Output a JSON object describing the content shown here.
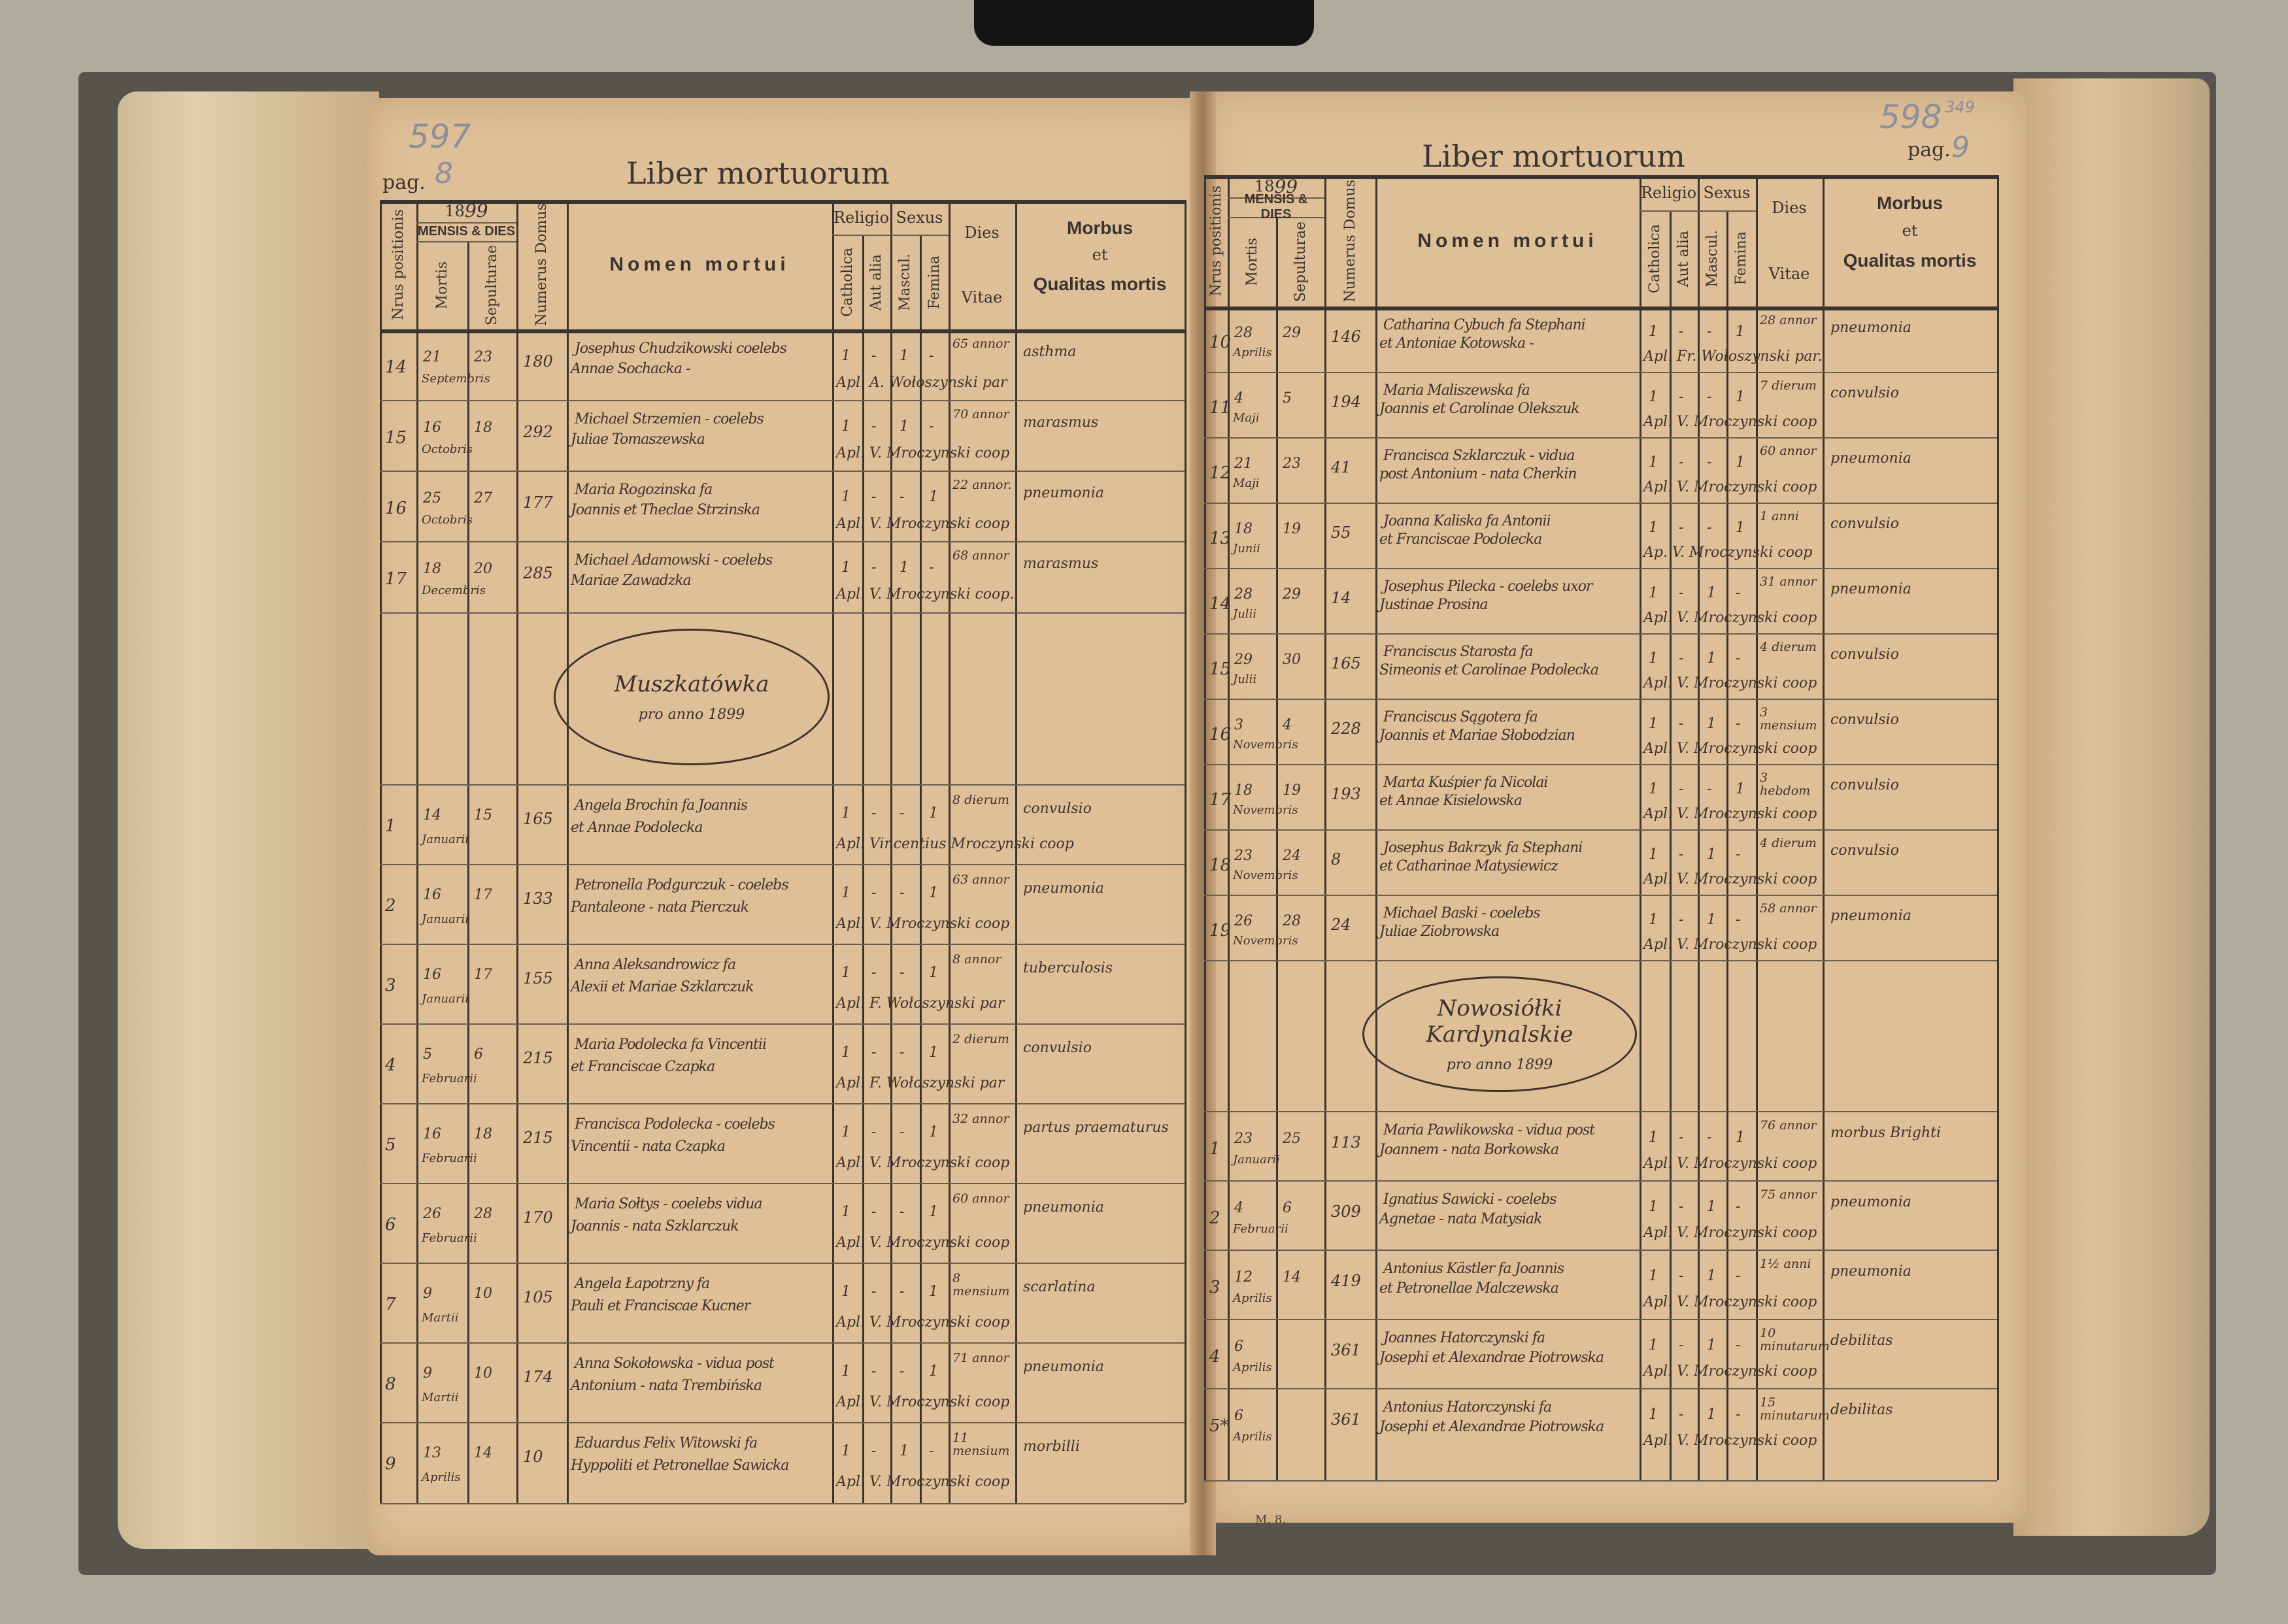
{
  "book": {
    "title": "Liber mortuorum",
    "pag_label": "pag.",
    "year_prefix": "18",
    "footer_mark": "M. 8."
  },
  "header": {
    "nrus": "Nrus positionis",
    "mensis_dies": "MENSIS & DIES",
    "mortis": "Mortis",
    "sepulturae": "Sepulturae",
    "numerus_domus": "Numerus Domus",
    "nomen": "Nomen mortui",
    "religio": "Religio",
    "catholica": "Catholica",
    "aut_alia": "Aut alia",
    "sexus_left": "Sexus",
    "sexus_right": "Sexus",
    "mascul": "Mascul.",
    "femina": "Femina",
    "dies": "Dies",
    "vitae": "Vitae",
    "morbus": "Morbus",
    "et": "et",
    "qualitas": "Qualitas mortis"
  },
  "left_page": {
    "pencil_number": "597",
    "page_number": "8",
    "year": "99",
    "stamp": {
      "name": "Muszkatówka",
      "sub": "pro anno 1899"
    },
    "rows_a": [
      {
        "nr": "14",
        "mortis": "21",
        "sepulturae": "23",
        "mensis": "Septembris",
        "domus": "180",
        "nomen": [
          "Josephus Chudzikowski coelebs",
          "Annae Sochacka -"
        ],
        "catholica": "1",
        "aut_alia": "-",
        "mascul": "1",
        "femina": "-",
        "dies_vitae": "65 annor",
        "morbus": "asthma",
        "sacerdos": "Apl. A. Wołoszynski par"
      },
      {
        "nr": "15",
        "mortis": "16",
        "sepulturae": "18",
        "mensis": "Octobris",
        "domus": "292",
        "nomen": [
          "Michael Strzemien - coelebs",
          "Juliae Tomaszewska"
        ],
        "catholica": "1",
        "aut_alia": "-",
        "mascul": "1",
        "femina": "-",
        "dies_vitae": "70 annor",
        "morbus": "marasmus",
        "sacerdos": "Apl. V. Mroczynski coop"
      },
      {
        "nr": "16",
        "mortis": "25",
        "sepulturae": "27",
        "mensis": "Octobris",
        "domus": "177",
        "nomen": [
          "Maria Rogozinska fa",
          "Joannis et Theclae Strzinska"
        ],
        "catholica": "1",
        "aut_alia": "-",
        "mascul": "-",
        "femina": "1",
        "dies_vitae": "22 annor.",
        "morbus": "pneumonia",
        "sacerdos": "Apl. V. Mroczynski coop"
      },
      {
        "nr": "17",
        "mortis": "18",
        "sepulturae": "20",
        "mensis": "Decembris",
        "domus": "285",
        "nomen": [
          "Michael Adamowski - coelebs",
          "Mariae Zawadzka"
        ],
        "catholica": "1",
        "aut_alia": "-",
        "mascul": "1",
        "femina": "-",
        "dies_vitae": "68 annor",
        "morbus": "marasmus",
        "sacerdos": "Apl. V. Mroczynski coop."
      }
    ],
    "rows_b": [
      {
        "nr": "1",
        "mortis": "14",
        "sepulturae": "15",
        "mensis": "Januarii",
        "domus": "165",
        "nomen": [
          "Angela Brochin fa Joannis",
          "et Annae Podolecka"
        ],
        "catholica": "1",
        "aut_alia": "-",
        "mascul": "-",
        "femina": "1",
        "dies_vitae": "8 dierum",
        "morbus": "convulsio",
        "sacerdos": "Apl. Vincentius Mroczynski coop"
      },
      {
        "nr": "2",
        "mortis": "16",
        "sepulturae": "17",
        "mensis": "Januarii",
        "domus": "133",
        "nomen": [
          "Petronella Podgurczuk - coelebs",
          "Pantaleone - nata Pierczuk"
        ],
        "catholica": "1",
        "aut_alia": "-",
        "mascul": "-",
        "femina": "1",
        "dies_vitae": "63 annor",
        "morbus": "pneumonia",
        "sacerdos": "Apl. V. Mroczynski coop"
      },
      {
        "nr": "3",
        "mortis": "16",
        "sepulturae": "17",
        "mensis": "Januarii",
        "domus": "155",
        "nomen": [
          "Anna Aleksandrowicz fa",
          "Alexii et Mariae Szklarczuk"
        ],
        "catholica": "1",
        "aut_alia": "-",
        "mascul": "-",
        "femina": "1",
        "dies_vitae": "8 annor",
        "morbus": "tuberculosis",
        "sacerdos": "Apl. F. Wołoszynski par"
      },
      {
        "nr": "4",
        "mortis": "5",
        "sepulturae": "6",
        "mensis": "Februarii",
        "domus": "215",
        "nomen": [
          "Maria Podolecka fa Vincentii",
          "et Franciscae Czapka"
        ],
        "catholica": "1",
        "aut_alia": "-",
        "mascul": "-",
        "femina": "1",
        "dies_vitae": "2 dierum",
        "morbus": "convulsio",
        "sacerdos": "Apl. F. Wołoszynski par"
      },
      {
        "nr": "5",
        "mortis": "16",
        "sepulturae": "18",
        "mensis": "Februarii",
        "domus": "215",
        "nomen": [
          "Francisca Podolecka - coelebs",
          "Vincentii - nata Czapka"
        ],
        "catholica": "1",
        "aut_alia": "-",
        "mascul": "-",
        "femina": "1",
        "dies_vitae": "32 annor",
        "morbus": "partus praematurus",
        "sacerdos": "Apl. V. Mroczynski coop"
      },
      {
        "nr": "6",
        "mortis": "26",
        "sepulturae": "28",
        "mensis": "Februarii",
        "domus": "170",
        "nomen": [
          "Maria Sołtys - coelebs vidua",
          "Joannis - nata Szklarczuk"
        ],
        "catholica": "1",
        "aut_alia": "-",
        "mascul": "-",
        "femina": "1",
        "dies_vitae": "60 annor",
        "morbus": "pneumonia",
        "sacerdos": "Apl. V. Mroczynski coop"
      },
      {
        "nr": "7",
        "mortis": "9",
        "sepulturae": "10",
        "mensis": "Martii",
        "domus": "105",
        "nomen": [
          "Angela Łapotrzny fa",
          "Pauli et Franciscae Kucner"
        ],
        "catholica": "1",
        "aut_alia": "-",
        "mascul": "-",
        "femina": "1",
        "dies_vitae": "8 mensium",
        "morbus": "scarlatina",
        "sacerdos": "Apl. V. Mroczynski coop"
      },
      {
        "nr": "8",
        "mortis": "9",
        "sepulturae": "10",
        "mensis": "Martii",
        "domus": "174",
        "nomen": [
          "Anna Sokołowska - vidua post",
          "Antonium - nata Trembińska"
        ],
        "catholica": "1",
        "aut_alia": "-",
        "mascul": "-",
        "femina": "1",
        "dies_vitae": "71 annor",
        "morbus": "pneumonia",
        "sacerdos": "Apl. V. Mroczynski coop"
      },
      {
        "nr": "9",
        "mortis": "13",
        "sepulturae": "14",
        "mensis": "Aprilis",
        "domus": "10",
        "nomen": [
          "Eduardus Felix Witowski fa",
          "Hyppoliti et Petronellae Sawicka"
        ],
        "catholica": "1",
        "aut_alia": "-",
        "mascul": "1",
        "femina": "-",
        "dies_vitae": "11 mensium",
        "morbus": "morbilli",
        "sacerdos": "Apl. V. Mroczynski coop"
      }
    ]
  },
  "right_page": {
    "pencil_number": "598",
    "pencil_small": "349",
    "page_number": "9",
    "year": "99",
    "stamp": {
      "name": "Nowosiółki Kardynalskie",
      "sub": "pro anno 1899"
    },
    "rows_a": [
      {
        "nr": "10",
        "mortis": "28",
        "sepulturae": "29",
        "mensis": "Aprilis",
        "domus": "146",
        "nomen": [
          "Catharina Cybuch fa Stephani",
          "et Antoniae Kotowska -"
        ],
        "catholica": "1",
        "aut_alia": "-",
        "mascul": "-",
        "femina": "1",
        "dies_vitae": "28 annor",
        "morbus": "pneumonia",
        "sacerdos": "Apl. Fr. Wołoszynski par."
      },
      {
        "nr": "11",
        "mortis": "4",
        "sepulturae": "5",
        "mensis": "Maji",
        "domus": "194",
        "nomen": [
          "Maria Maliszewska fa",
          "Joannis et Carolinae Olekszuk"
        ],
        "catholica": "1",
        "aut_alia": "-",
        "mascul": "-",
        "femina": "1",
        "dies_vitae": "7 dierum",
        "morbus": "convulsio",
        "sacerdos": "Apl. V. Mroczynski coop"
      },
      {
        "nr": "12",
        "mortis": "21",
        "sepulturae": "23",
        "mensis": "Maji",
        "domus": "41",
        "nomen": [
          "Francisca Szklarczuk - vidua",
          "post Antonium - nata Cherkin"
        ],
        "catholica": "1",
        "aut_alia": "-",
        "mascul": "-",
        "femina": "1",
        "dies_vitae": "60 annor",
        "morbus": "pneumonia",
        "sacerdos": "Apl. V. Mroczynski coop"
      },
      {
        "nr": "13",
        "mortis": "18",
        "sepulturae": "19",
        "mensis": "Junii",
        "domus": "55",
        "nomen": [
          "Joanna Kaliska fa Antonii",
          "et Franciscae Podolecka"
        ],
        "catholica": "1",
        "aut_alia": "-",
        "mascul": "-",
        "femina": "1",
        "dies_vitae": "1 anni",
        "morbus": "convulsio",
        "sacerdos": "Ap. V. Mroczynski coop"
      },
      {
        "nr": "14",
        "mortis": "28",
        "sepulturae": "29",
        "mensis": "Julii",
        "domus": "14",
        "nomen": [
          "Josephus Pilecka - coelebs uxor",
          "Justinae Prosina"
        ],
        "catholica": "1",
        "aut_alia": "-",
        "mascul": "1",
        "femina": "-",
        "dies_vitae": "31 annor",
        "morbus": "pneumonia",
        "sacerdos": "Apl. V. Mroczynski coop"
      },
      {
        "nr": "15",
        "mortis": "29",
        "sepulturae": "30",
        "mensis": "Julii",
        "domus": "165",
        "nomen": [
          "Franciscus Starosta fa",
          "Simeonis et Carolinae Podolecka"
        ],
        "catholica": "1",
        "aut_alia": "-",
        "mascul": "1",
        "femina": "-",
        "dies_vitae": "4 dierum",
        "morbus": "convulsio",
        "sacerdos": "Apl. V. Mroczynski coop"
      },
      {
        "nr": "16",
        "mortis": "3",
        "sepulturae": "4",
        "mensis": "Novembris",
        "domus": "228",
        "nomen": [
          "Franciscus Sągotera fa",
          "Joannis et Mariae Słobodzian"
        ],
        "catholica": "1",
        "aut_alia": "-",
        "mascul": "1",
        "femina": "-",
        "dies_vitae": "3 mensium",
        "morbus": "convulsio",
        "sacerdos": "Apl. V. Mroczynski coop"
      },
      {
        "nr": "17",
        "mortis": "18",
        "sepulturae": "19",
        "mensis": "Novembris",
        "domus": "193",
        "nomen": [
          "Marta Kuśpier fa Nicolai",
          "et Annae Kisielowska"
        ],
        "catholica": "1",
        "aut_alia": "-",
        "mascul": "-",
        "femina": "1",
        "dies_vitae": "3 hebdom",
        "morbus": "convulsio",
        "sacerdos": "Apl. V. Mroczynski coop"
      },
      {
        "nr": "18",
        "mortis": "23",
        "sepulturae": "24",
        "mensis": "Novembris",
        "domus": "8",
        "nomen": [
          "Josephus Bakrzyk fa Stephani",
          "et Catharinae Matysiewicz"
        ],
        "catholica": "1",
        "aut_alia": "-",
        "mascul": "1",
        "femina": "-",
        "dies_vitae": "4 dierum",
        "morbus": "convulsio",
        "sacerdos": "Apl. V. Mroczynski coop"
      },
      {
        "nr": "19",
        "mortis": "26",
        "sepulturae": "28",
        "mensis": "Novembris",
        "domus": "24",
        "nomen": [
          "Michael Baski - coelebs",
          "Juliae Ziobrowska"
        ],
        "catholica": "1",
        "aut_alia": "-",
        "mascul": "1",
        "femina": "-",
        "dies_vitae": "58 annor",
        "morbus": "pneumonia",
        "sacerdos": "Apl. V. Mroczynski coop"
      }
    ],
    "rows_b": [
      {
        "nr": "1",
        "mortis": "23",
        "sepulturae": "25",
        "mensis": "Januarii",
        "domus": "113",
        "nomen": [
          "Maria Pawlikowska - vidua post",
          "Joannem - nata Borkowska"
        ],
        "catholica": "1",
        "aut_alia": "-",
        "mascul": "-",
        "femina": "1",
        "dies_vitae": "76 annor",
        "morbus": "morbus Brighti",
        "sacerdos": "Apl. V. Mroczynski coop"
      },
      {
        "nr": "2",
        "mortis": "4",
        "sepulturae": "6",
        "mensis": "Februarii",
        "domus": "309",
        "nomen": [
          "Ignatius Sawicki - coelebs",
          "Agnetae - nata Matysiak"
        ],
        "catholica": "1",
        "aut_alia": "-",
        "mascul": "1",
        "femina": "-",
        "dies_vitae": "75 annor",
        "morbus": "pneumonia",
        "sacerdos": "Apl. V. Mroczynski coop"
      },
      {
        "nr": "3",
        "mortis": "12",
        "sepulturae": "14",
        "mensis": "Aprilis",
        "domus": "419",
        "nomen": [
          "Antonius Kästler fa Joannis",
          "et Petronellae Malczewska"
        ],
        "catholica": "1",
        "aut_alia": "-",
        "mascul": "1",
        "femina": "-",
        "dies_vitae": "1½ anni",
        "morbus": "pneumonia",
        "sacerdos": "Apl. V. Mroczynski coop"
      },
      {
        "nr": "4",
        "mortis": "6",
        "sepulturae": "",
        "mensis": "Aprilis",
        "domus": "361",
        "nomen": [
          "Joannes Hatorczynski fa",
          "Josephi et Alexandrae Piotrowska"
        ],
        "catholica": "1",
        "aut_alia": "-",
        "mascul": "1",
        "femina": "-",
        "dies_vitae": "10 minutarum",
        "morbus": "debilitas",
        "sacerdos": "Apl. V. Mroczynski coop"
      },
      {
        "nr": "5*",
        "mortis": "6",
        "sepulturae": "",
        "mensis": "Aprilis",
        "domus": "361",
        "nomen": [
          "Antonius Hatorczynski fa",
          "Josephi et Alexandrae Piotrowska"
        ],
        "catholica": "1",
        "aut_alia": "-",
        "mascul": "1",
        "femina": "-",
        "dies_vitae": "15 minutarum",
        "morbus": "debilitas",
        "sacerdos": "Apl. V. Mroczynski coop"
      }
    ]
  }
}
